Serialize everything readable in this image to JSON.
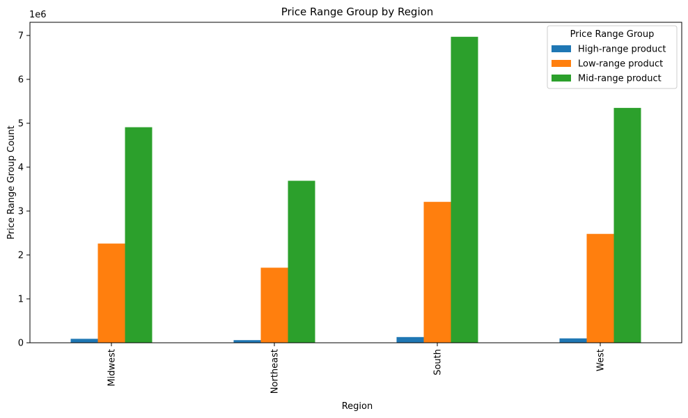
{
  "chart_data": {
    "type": "bar",
    "title": "Price Range Group by Region",
    "xlabel": "Region",
    "ylabel": "Price Range Group Count",
    "y_offset_label": "1e6",
    "categories": [
      "Midwest",
      "Northeast",
      "South",
      "West"
    ],
    "series": [
      {
        "name": "High-range product",
        "color": "#1f77b4",
        "values": [
          0.09,
          0.06,
          0.13,
          0.1
        ]
      },
      {
        "name": "Low-range product",
        "color": "#ff7f0e",
        "values": [
          2.26,
          1.71,
          3.21,
          2.48
        ]
      },
      {
        "name": "Mid-range product",
        "color": "#2ca02c",
        "values": [
          4.91,
          3.69,
          6.97,
          5.35
        ]
      }
    ],
    "ylim": [
      0,
      7.3
    ],
    "yticks": [
      0,
      1,
      2,
      3,
      4,
      5,
      6,
      7
    ],
    "ytick_labels": [
      "0",
      "1",
      "2",
      "3",
      "4",
      "5",
      "6",
      "7"
    ],
    "grid": false,
    "legend": {
      "title": "Price Range Group",
      "position": "top-right"
    }
  }
}
